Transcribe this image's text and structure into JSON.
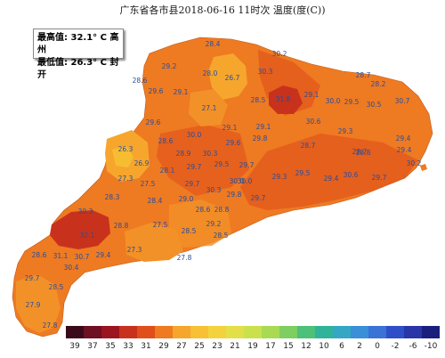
{
  "title": "广东省各市县2018-06-16 11时次 温度(度(C))",
  "stats": {
    "max_label": "最高值: 32.1° C 高州",
    "min_label": "最低值: 26.3° C 封开"
  },
  "colors": {
    "c33": "#c8321c",
    "c31": "#e04e1c",
    "c30": "#e8641e",
    "c29": "#ee7a22",
    "c28": "#f29128",
    "c27": "#f6a62c",
    "c26": "#f7bd30",
    "sea": "#ffffff",
    "label": "#2a4d9a"
  },
  "stations": [
    {
      "value": "28.4"
    },
    {
      "value": "30.2"
    },
    {
      "value": "29.2"
    },
    {
      "value": "28.0"
    },
    {
      "value": "26.7"
    },
    {
      "value": "30.3"
    },
    {
      "value": "28.7"
    },
    {
      "value": "28.2"
    },
    {
      "value": "28.6"
    },
    {
      "value": "29.6"
    },
    {
      "value": "29.1"
    },
    {
      "value": "28.5"
    },
    {
      "value": "31.8"
    },
    {
      "value": "29.1"
    },
    {
      "value": "30.0"
    },
    {
      "value": "29.5"
    },
    {
      "value": "30.5"
    },
    {
      "value": "30.7"
    },
    {
      "value": "27.1"
    },
    {
      "value": "29.6"
    },
    {
      "value": "29.1"
    },
    {
      "value": "29.1"
    },
    {
      "value": "30.6"
    },
    {
      "value": "28.6"
    },
    {
      "value": "30.0"
    },
    {
      "value": "29.6"
    },
    {
      "value": "29.8"
    },
    {
      "value": "28.7"
    },
    {
      "value": "29.3"
    },
    {
      "value": "29.4"
    },
    {
      "value": "28.7"
    },
    {
      "value": "26.3"
    },
    {
      "value": "28.9"
    },
    {
      "value": "30.3"
    },
    {
      "value": "28.8"
    },
    {
      "value": "29.4"
    },
    {
      "value": "30.2"
    },
    {
      "value": "26.9"
    },
    {
      "value": "28.1"
    },
    {
      "value": "29.7"
    },
    {
      "value": "29.5"
    },
    {
      "value": "29.7"
    },
    {
      "value": "29.3"
    },
    {
      "value": "29.5"
    },
    {
      "value": "29.4"
    },
    {
      "value": "30.6"
    },
    {
      "value": "29.7"
    },
    {
      "value": "27.3"
    },
    {
      "value": "27.5"
    },
    {
      "value": "29.7"
    },
    {
      "value": "30.3"
    },
    {
      "value": "30.0"
    },
    {
      "value": "28.3"
    },
    {
      "value": "28.4"
    },
    {
      "value": "29.0"
    },
    {
      "value": "29.8"
    },
    {
      "value": "29.7"
    },
    {
      "value": "30.0"
    },
    {
      "value": "30.3"
    },
    {
      "value": "28.8"
    },
    {
      "value": "28.6"
    },
    {
      "value": "28.8"
    },
    {
      "value": "27.5"
    },
    {
      "value": "29.2"
    },
    {
      "value": "32.1"
    },
    {
      "value": "28.5"
    },
    {
      "value": "28.5"
    },
    {
      "value": "27.3"
    },
    {
      "value": "28.6"
    },
    {
      "value": "31.1"
    },
    {
      "value": "30.7"
    },
    {
      "value": "29.4"
    },
    {
      "value": "30.4"
    },
    {
      "value": "27.8"
    },
    {
      "value": "29.7"
    },
    {
      "value": "28.5"
    },
    {
      "value": "27.9"
    },
    {
      "value": "27.8"
    }
  ],
  "legend": {
    "labels": [
      "39",
      "37",
      "35",
      "33",
      "31",
      "29",
      "27",
      "25",
      "23",
      "21",
      "19",
      "17",
      "15",
      "12",
      "10",
      "6",
      "2",
      "0",
      "-2",
      "-6",
      "-10"
    ],
    "colors": [
      "#3b0a1a",
      "#6e0f24",
      "#9c1420",
      "#c8321c",
      "#e04e1c",
      "#ee7a22",
      "#f6a62c",
      "#f8c034",
      "#f4d23e",
      "#e3df48",
      "#cbe14c",
      "#a9da54",
      "#7ece62",
      "#4dc07a",
      "#2fb39a",
      "#35a7c4",
      "#3a8fd8",
      "#3a72d6",
      "#2f4fc8",
      "#2836a8",
      "#1a1f7e"
    ]
  }
}
